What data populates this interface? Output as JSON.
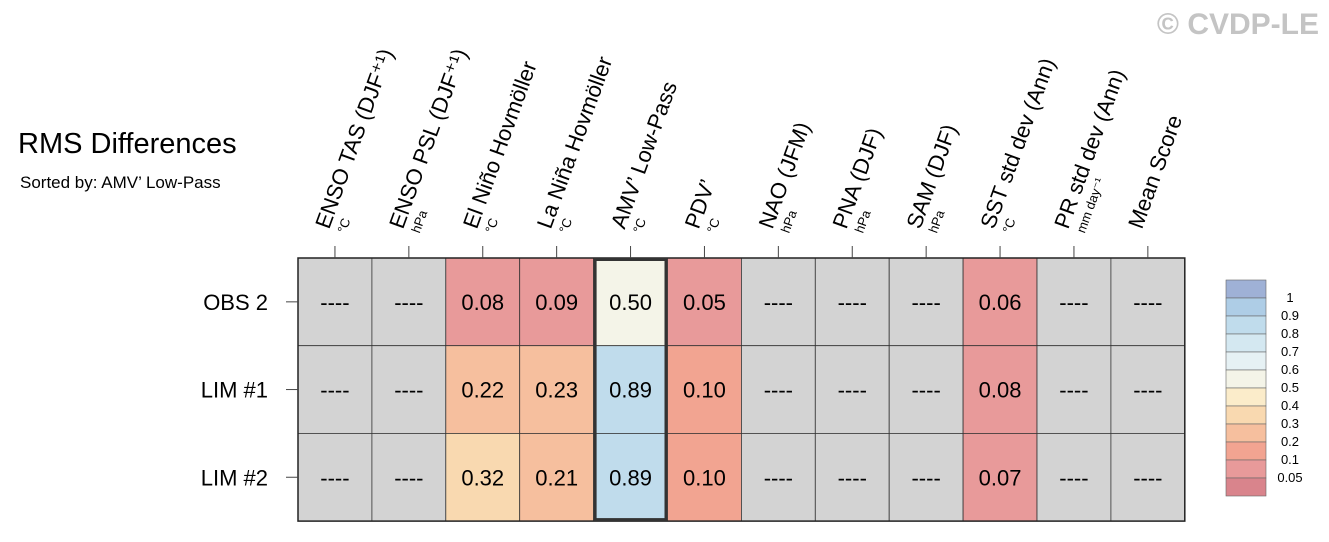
{
  "title": "RMS Differences",
  "subtitle": "Sorted by: AMV’ Low-Pass",
  "watermark": "© CVDP-LE",
  "chart_data": {
    "type": "heatmap",
    "title": "RMS Differences",
    "subtitle": "Sorted by: AMV’ Low-Pass",
    "columns": [
      {
        "label": "ENSO TAS (DJF⁺¹)",
        "unit": "°C"
      },
      {
        "label": "ENSO PSL (DJF⁺¹)",
        "unit": "hPa"
      },
      {
        "label": "El Niño Hovmöller",
        "unit": "°C"
      },
      {
        "label": "La Niña Hovmöller",
        "unit": "°C"
      },
      {
        "label": "AMV’ Low-Pass",
        "unit": "°C"
      },
      {
        "label": "PDV’",
        "unit": "°C"
      },
      {
        "label": "NAO (JFM)",
        "unit": "hPa"
      },
      {
        "label": "PNA (DJF)",
        "unit": "hPa"
      },
      {
        "label": "SAM (DJF)",
        "unit": "hPa"
      },
      {
        "label": "SST std dev (Ann)",
        "unit": "°C"
      },
      {
        "label": "PR std dev (Ann)",
        "unit": "mm day⁻¹"
      },
      {
        "label": "Mean Score",
        "unit": ""
      }
    ],
    "rows": [
      "OBS 2",
      "LIM #1",
      "LIM #2"
    ],
    "values": [
      [
        null,
        null,
        0.08,
        0.09,
        0.5,
        0.05,
        null,
        null,
        null,
        0.06,
        null,
        null
      ],
      [
        null,
        null,
        0.22,
        0.23,
        0.89,
        0.1,
        null,
        null,
        null,
        0.08,
        null,
        null
      ],
      [
        null,
        null,
        0.32,
        0.21,
        0.89,
        0.1,
        null,
        null,
        null,
        0.07,
        null,
        null
      ]
    ],
    "cell_text": [
      [
        "----",
        "----",
        "0.08",
        "0.09",
        "0.50",
        "0.05",
        "----",
        "----",
        "----",
        "0.06",
        "----",
        "----"
      ],
      [
        "----",
        "----",
        "0.22",
        "0.23",
        "0.89",
        "0.10",
        "----",
        "----",
        "----",
        "0.08",
        "----",
        "----"
      ],
      [
        "----",
        "----",
        "0.32",
        "0.21",
        "0.89",
        "0.10",
        "----",
        "----",
        "----",
        "0.07",
        "----",
        "----"
      ]
    ],
    "highlighted_column": 4,
    "missing_color": "#d3d3d3",
    "legend": {
      "labels": [
        "1",
        "0.9",
        "0.8",
        "0.7",
        "0.6",
        "0.5",
        "0.4",
        "0.3",
        "0.2",
        "0.1",
        "0.05"
      ],
      "colors": [
        "#9fb1d6",
        "#aecde6",
        "#c0dcec",
        "#d4e8f1",
        "#e6f1f4",
        "#f4f4e8",
        "#fbecca",
        "#f9d9b0",
        "#f6bf9e",
        "#f2a491",
        "#e89a9a",
        "#d9848c"
      ]
    }
  }
}
